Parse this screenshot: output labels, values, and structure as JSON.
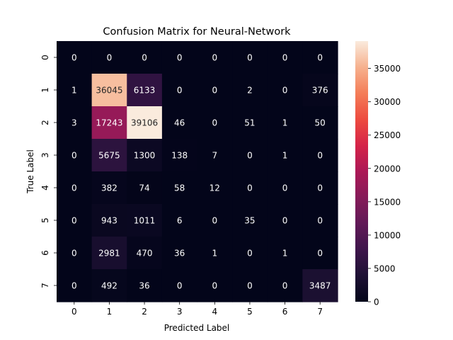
{
  "chart_data": {
    "type": "heatmap",
    "title": "Confusion Matrix for Neural-Network",
    "xlabel": "Predicted Label",
    "ylabel": "True Label",
    "x_categories": [
      "0",
      "1",
      "2",
      "3",
      "4",
      "5",
      "6",
      "7"
    ],
    "y_categories": [
      "0",
      "1",
      "2",
      "3",
      "4",
      "5",
      "6",
      "7"
    ],
    "values": [
      [
        0,
        0,
        0,
        0,
        0,
        0,
        0,
        0
      ],
      [
        1,
        36045,
        6133,
        0,
        0,
        2,
        0,
        376
      ],
      [
        3,
        17243,
        39106,
        46,
        0,
        51,
        1,
        50
      ],
      [
        0,
        5675,
        1300,
        138,
        7,
        0,
        1,
        0
      ],
      [
        0,
        382,
        74,
        58,
        12,
        0,
        0,
        0
      ],
      [
        0,
        943,
        1011,
        6,
        0,
        35,
        0,
        0
      ],
      [
        0,
        2981,
        470,
        36,
        1,
        0,
        1,
        0
      ],
      [
        0,
        492,
        36,
        0,
        0,
        0,
        0,
        3487
      ]
    ],
    "colorbar": {
      "colormap": "rocket",
      "range": [
        0,
        39106
      ],
      "ticks": [
        0,
        5000,
        10000,
        15000,
        20000,
        25000,
        30000,
        35000
      ]
    }
  }
}
